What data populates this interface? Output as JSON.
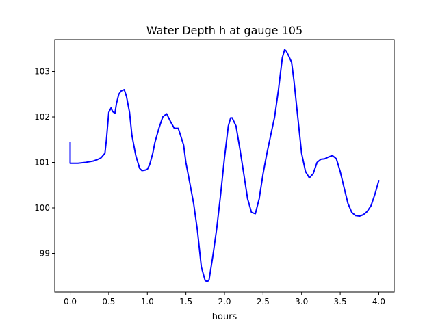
{
  "chart_data": {
    "type": "line",
    "title": "Water Depth h at gauge 105",
    "xlabel": "hours",
    "ylabel": "",
    "xlim": [
      -0.2,
      4.2
    ],
    "ylim": [
      98.15,
      103.7
    ],
    "xticks": [
      0.0,
      0.5,
      1.0,
      1.5,
      2.0,
      2.5,
      3.0,
      3.5,
      4.0
    ],
    "xtick_labels": [
      "0.0",
      "0.5",
      "1.0",
      "1.5",
      "2.0",
      "2.5",
      "3.0",
      "3.5",
      "4.0"
    ],
    "yticks": [
      99,
      100,
      101,
      102,
      103
    ],
    "ytick_labels": [
      "99",
      "100",
      "101",
      "102",
      "103"
    ],
    "grid": false,
    "series": [
      {
        "color": "#0000ff",
        "x": [
          0.0,
          0.0,
          0.1,
          0.2,
          0.3,
          0.35,
          0.4,
          0.45,
          0.47,
          0.5,
          0.53,
          0.55,
          0.58,
          0.6,
          0.63,
          0.66,
          0.7,
          0.73,
          0.77,
          0.8,
          0.85,
          0.9,
          0.93,
          0.97,
          1.0,
          1.03,
          1.07,
          1.1,
          1.15,
          1.2,
          1.25,
          1.3,
          1.35,
          1.4,
          1.43,
          1.47,
          1.5,
          1.55,
          1.6,
          1.65,
          1.7,
          1.75,
          1.78,
          1.8,
          1.85,
          1.9,
          1.95,
          2.0,
          2.05,
          2.08,
          2.1,
          2.15,
          2.2,
          2.25,
          2.3,
          2.35,
          2.4,
          2.45,
          2.5,
          2.55,
          2.6,
          2.65,
          2.7,
          2.75,
          2.78,
          2.8,
          2.83,
          2.87,
          2.9,
          2.95,
          3.0,
          3.05,
          3.1,
          3.15,
          3.2,
          3.25,
          3.3,
          3.35,
          3.4,
          3.45,
          3.5,
          3.55,
          3.6,
          3.65,
          3.7,
          3.75,
          3.8,
          3.85,
          3.9,
          3.95,
          4.0
        ],
        "values": [
          101.44,
          100.98,
          100.98,
          101.0,
          101.03,
          101.06,
          101.1,
          101.2,
          101.5,
          102.1,
          102.2,
          102.12,
          102.08,
          102.3,
          102.5,
          102.57,
          102.6,
          102.45,
          102.1,
          101.6,
          101.15,
          100.87,
          100.82,
          100.83,
          100.85,
          100.95,
          101.2,
          101.45,
          101.75,
          102.0,
          102.07,
          101.9,
          101.75,
          101.75,
          101.6,
          101.38,
          101.0,
          100.55,
          100.1,
          99.5,
          98.7,
          98.4,
          98.38,
          98.42,
          98.95,
          99.55,
          100.3,
          101.1,
          101.8,
          101.98,
          101.98,
          101.8,
          101.3,
          100.75,
          100.2,
          99.9,
          99.87,
          100.2,
          100.75,
          101.2,
          101.6,
          102.0,
          102.6,
          103.3,
          103.48,
          103.45,
          103.35,
          103.2,
          102.8,
          102.0,
          101.2,
          100.8,
          100.66,
          100.75,
          101.0,
          101.07,
          101.08,
          101.12,
          101.15,
          101.08,
          100.8,
          100.45,
          100.1,
          99.9,
          99.83,
          99.82,
          99.85,
          99.92,
          100.05,
          100.3,
          100.6
        ]
      }
    ]
  }
}
